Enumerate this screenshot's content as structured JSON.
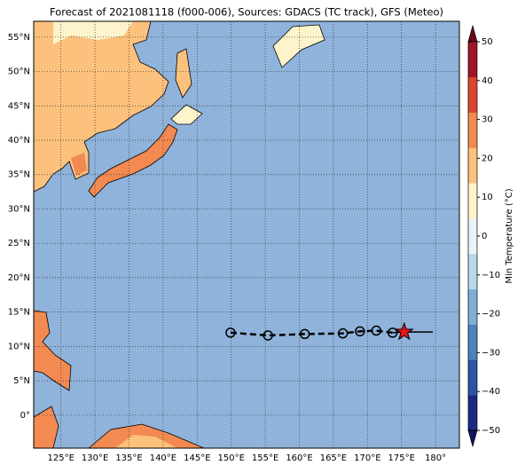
{
  "title": "Forecast of 2021081118 (f000-006), Sources: GDACS (TC track), GFS (Meteo)",
  "map": {
    "lon_range": [
      121,
      183.5
    ],
    "lat_range": [
      -4.8,
      57.3
    ],
    "ocean_color": "#8fb3da",
    "grid": true,
    "lon_ticks": [
      {
        "value": 125,
        "label": "125°E"
      },
      {
        "value": 130,
        "label": "130°E"
      },
      {
        "value": 135,
        "label": "135°E"
      },
      {
        "value": 140,
        "label": "140°E"
      },
      {
        "value": 145,
        "label": "145°E"
      },
      {
        "value": 150,
        "label": "150°E"
      },
      {
        "value": 155,
        "label": "155°E"
      },
      {
        "value": 160,
        "label": "160°E"
      },
      {
        "value": 165,
        "label": "165°E"
      },
      {
        "value": 170,
        "label": "170°E"
      },
      {
        "value": 175,
        "label": "175°E"
      },
      {
        "value": 180,
        "label": "180°"
      }
    ],
    "lat_ticks": [
      {
        "value": 0,
        "label": "0°"
      },
      {
        "value": 5,
        "label": "5°N"
      },
      {
        "value": 10,
        "label": "10°N"
      },
      {
        "value": 15,
        "label": "15°N"
      },
      {
        "value": 20,
        "label": "20°N"
      },
      {
        "value": 25,
        "label": "25°N"
      },
      {
        "value": 30,
        "label": "30°N"
      },
      {
        "value": 35,
        "label": "35°N"
      },
      {
        "value": 40,
        "label": "40°N"
      },
      {
        "value": 45,
        "label": "45°N"
      },
      {
        "value": 50,
        "label": "50°N"
      },
      {
        "value": 55,
        "label": "55°N"
      }
    ]
  },
  "track": {
    "forecast": [
      {
        "lon": 149.9,
        "lat": 12.0
      },
      {
        "lon": 155.4,
        "lat": 11.6
      },
      {
        "lon": 160.8,
        "lat": 11.8
      },
      {
        "lon": 166.4,
        "lat": 11.9
      },
      {
        "lon": 168.9,
        "lat": 12.2
      },
      {
        "lon": 171.3,
        "lat": 12.3
      },
      {
        "lon": 173.7,
        "lat": 12.0
      }
    ],
    "current": {
      "lon": 175.4,
      "lat": 12.1
    },
    "end": {
      "lon": 179.6,
      "lat": 12.1
    },
    "current_color": "#e8141a"
  },
  "colorbar": {
    "label": "Min Temperature (°C)",
    "range": [
      -50,
      50
    ],
    "colors": [
      "#1b2a80",
      "#2d55a0",
      "#4c82bd",
      "#7fafd6",
      "#b9d8ea",
      "#e7f3f6",
      "#fdf4cc",
      "#fcc17c",
      "#f28a52",
      "#d9452f",
      "#a01628"
    ],
    "extend_colors": [
      "#0f1660",
      "#6b0a18"
    ],
    "ticks": [
      {
        "value": -50,
        "label": "−50"
      },
      {
        "value": -40,
        "label": "−40"
      },
      {
        "value": -30,
        "label": "−30"
      },
      {
        "value": -20,
        "label": "−20"
      },
      {
        "value": -10,
        "label": "−10"
      },
      0,
      10,
      20,
      30,
      40,
      50
    ]
  }
}
